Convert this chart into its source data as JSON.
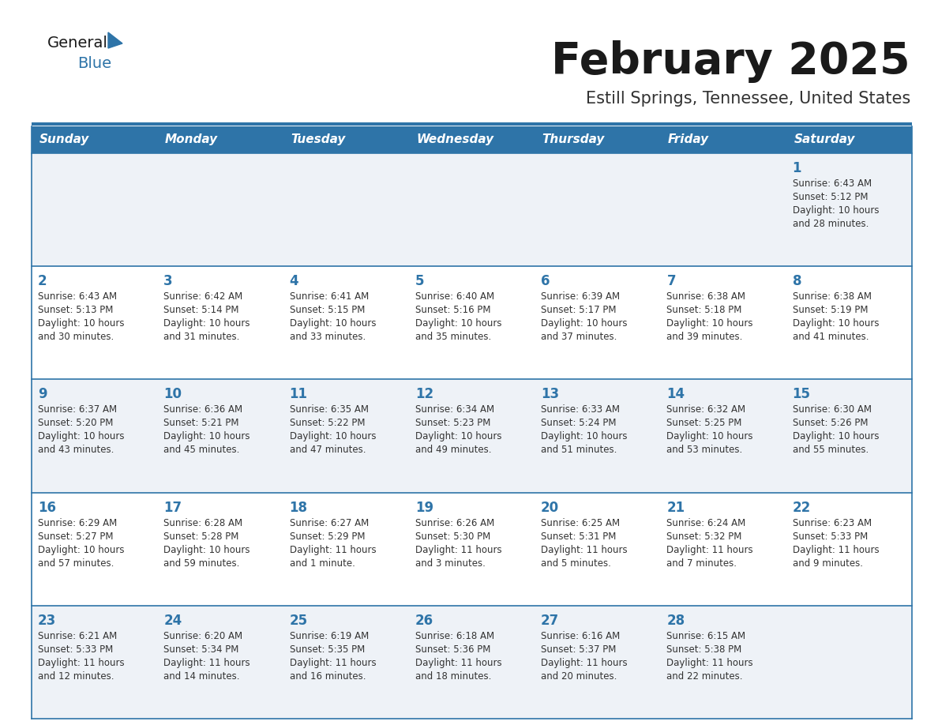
{
  "title": "February 2025",
  "subtitle": "Estill Springs, Tennessee, United States",
  "days_of_week": [
    "Sunday",
    "Monday",
    "Tuesday",
    "Wednesday",
    "Thursday",
    "Friday",
    "Saturday"
  ],
  "header_bg": "#2E74A8",
  "header_text_color": "#FFFFFF",
  "row_bg_even": "#EEF2F7",
  "row_bg_odd": "#FFFFFF",
  "cell_text_color": "#333333",
  "divider_color": "#2E74A8",
  "title_color": "#1a1a1a",
  "subtitle_color": "#333333",
  "number_color": "#2E74A8",
  "generalblue_black": "#1a1a1a",
  "generalblue_blue": "#2E74A8",
  "calendar_data": [
    [
      {
        "day": null,
        "sunrise": null,
        "sunset": null,
        "daylight": null
      },
      {
        "day": null,
        "sunrise": null,
        "sunset": null,
        "daylight": null
      },
      {
        "day": null,
        "sunrise": null,
        "sunset": null,
        "daylight": null
      },
      {
        "day": null,
        "sunrise": null,
        "sunset": null,
        "daylight": null
      },
      {
        "day": null,
        "sunrise": null,
        "sunset": null,
        "daylight": null
      },
      {
        "day": null,
        "sunrise": null,
        "sunset": null,
        "daylight": null
      },
      {
        "day": 1,
        "sunrise": "6:43 AM",
        "sunset": "5:12 PM",
        "daylight": "10 hours\nand 28 minutes."
      }
    ],
    [
      {
        "day": 2,
        "sunrise": "6:43 AM",
        "sunset": "5:13 PM",
        "daylight": "10 hours\nand 30 minutes."
      },
      {
        "day": 3,
        "sunrise": "6:42 AM",
        "sunset": "5:14 PM",
        "daylight": "10 hours\nand 31 minutes."
      },
      {
        "day": 4,
        "sunrise": "6:41 AM",
        "sunset": "5:15 PM",
        "daylight": "10 hours\nand 33 minutes."
      },
      {
        "day": 5,
        "sunrise": "6:40 AM",
        "sunset": "5:16 PM",
        "daylight": "10 hours\nand 35 minutes."
      },
      {
        "day": 6,
        "sunrise": "6:39 AM",
        "sunset": "5:17 PM",
        "daylight": "10 hours\nand 37 minutes."
      },
      {
        "day": 7,
        "sunrise": "6:38 AM",
        "sunset": "5:18 PM",
        "daylight": "10 hours\nand 39 minutes."
      },
      {
        "day": 8,
        "sunrise": "6:38 AM",
        "sunset": "5:19 PM",
        "daylight": "10 hours\nand 41 minutes."
      }
    ],
    [
      {
        "day": 9,
        "sunrise": "6:37 AM",
        "sunset": "5:20 PM",
        "daylight": "10 hours\nand 43 minutes."
      },
      {
        "day": 10,
        "sunrise": "6:36 AM",
        "sunset": "5:21 PM",
        "daylight": "10 hours\nand 45 minutes."
      },
      {
        "day": 11,
        "sunrise": "6:35 AM",
        "sunset": "5:22 PM",
        "daylight": "10 hours\nand 47 minutes."
      },
      {
        "day": 12,
        "sunrise": "6:34 AM",
        "sunset": "5:23 PM",
        "daylight": "10 hours\nand 49 minutes."
      },
      {
        "day": 13,
        "sunrise": "6:33 AM",
        "sunset": "5:24 PM",
        "daylight": "10 hours\nand 51 minutes."
      },
      {
        "day": 14,
        "sunrise": "6:32 AM",
        "sunset": "5:25 PM",
        "daylight": "10 hours\nand 53 minutes."
      },
      {
        "day": 15,
        "sunrise": "6:30 AM",
        "sunset": "5:26 PM",
        "daylight": "10 hours\nand 55 minutes."
      }
    ],
    [
      {
        "day": 16,
        "sunrise": "6:29 AM",
        "sunset": "5:27 PM",
        "daylight": "10 hours\nand 57 minutes."
      },
      {
        "day": 17,
        "sunrise": "6:28 AM",
        "sunset": "5:28 PM",
        "daylight": "10 hours\nand 59 minutes."
      },
      {
        "day": 18,
        "sunrise": "6:27 AM",
        "sunset": "5:29 PM",
        "daylight": "11 hours\nand 1 minute."
      },
      {
        "day": 19,
        "sunrise": "6:26 AM",
        "sunset": "5:30 PM",
        "daylight": "11 hours\nand 3 minutes."
      },
      {
        "day": 20,
        "sunrise": "6:25 AM",
        "sunset": "5:31 PM",
        "daylight": "11 hours\nand 5 minutes."
      },
      {
        "day": 21,
        "sunrise": "6:24 AM",
        "sunset": "5:32 PM",
        "daylight": "11 hours\nand 7 minutes."
      },
      {
        "day": 22,
        "sunrise": "6:23 AM",
        "sunset": "5:33 PM",
        "daylight": "11 hours\nand 9 minutes."
      }
    ],
    [
      {
        "day": 23,
        "sunrise": "6:21 AM",
        "sunset": "5:33 PM",
        "daylight": "11 hours\nand 12 minutes."
      },
      {
        "day": 24,
        "sunrise": "6:20 AM",
        "sunset": "5:34 PM",
        "daylight": "11 hours\nand 14 minutes."
      },
      {
        "day": 25,
        "sunrise": "6:19 AM",
        "sunset": "5:35 PM",
        "daylight": "11 hours\nand 16 minutes."
      },
      {
        "day": 26,
        "sunrise": "6:18 AM",
        "sunset": "5:36 PM",
        "daylight": "11 hours\nand 18 minutes."
      },
      {
        "day": 27,
        "sunrise": "6:16 AM",
        "sunset": "5:37 PM",
        "daylight": "11 hours\nand 20 minutes."
      },
      {
        "day": 28,
        "sunrise": "6:15 AM",
        "sunset": "5:38 PM",
        "daylight": "11 hours\nand 22 minutes."
      },
      {
        "day": null,
        "sunrise": null,
        "sunset": null,
        "daylight": null
      }
    ]
  ]
}
